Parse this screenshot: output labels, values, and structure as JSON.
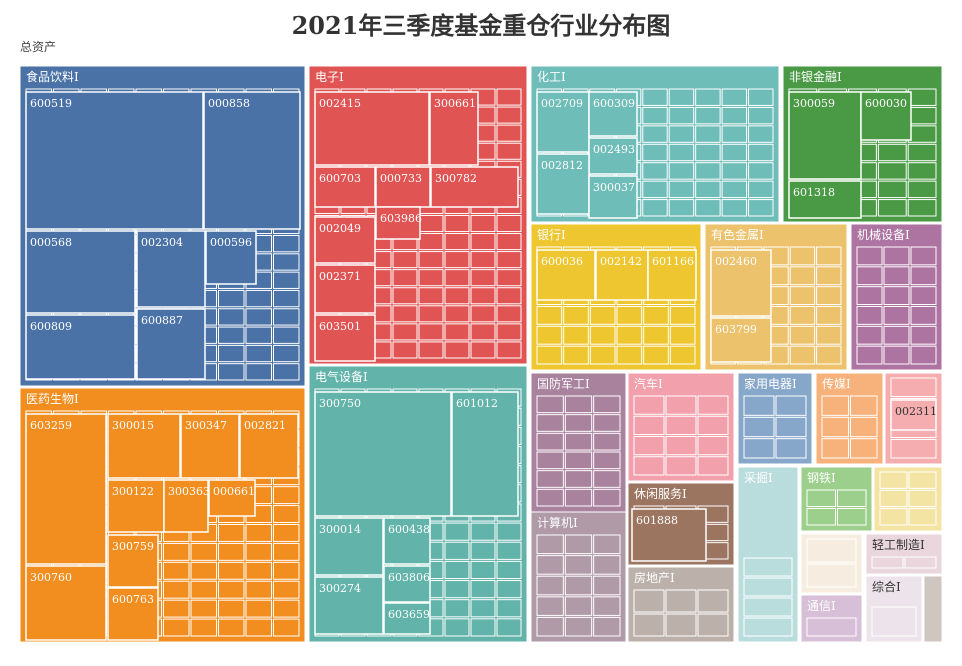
{
  "title": "2021年三季度基金重仓行业分布图",
  "breadcrumb": "总资产",
  "chart_data": {
    "type": "treemap",
    "title": "2021年三季度基金重仓行业分布图",
    "root": "总资产",
    "sectors": [
      {
        "name": "食品饮料I",
        "color": "#4a72a6",
        "stocks": [
          "600519",
          "000858",
          "000568",
          "002304",
          "000596",
          "600809",
          "600887"
        ]
      },
      {
        "name": "电子I",
        "color": "#e05454",
        "stocks": [
          "002415",
          "300661",
          "600703",
          "000733",
          "300782",
          "603986",
          "002049",
          "002371",
          "603501"
        ]
      },
      {
        "name": "化工I",
        "color": "#6fbdb9",
        "stocks": [
          "002709",
          "600309",
          "002493",
          "002812",
          "300037"
        ]
      },
      {
        "name": "非银金融I",
        "color": "#4a9a45",
        "stocks": [
          "300059",
          "600030",
          "601318"
        ]
      },
      {
        "name": "医药生物I",
        "color": "#f28d1f",
        "stocks": [
          "603259",
          "300015",
          "300347",
          "002821",
          "300122",
          "300363",
          "000661",
          "300759",
          "300760",
          "600763"
        ]
      },
      {
        "name": "电气设备I",
        "color": "#62b3a9",
        "stocks": [
          "300750",
          "601012",
          "300014",
          "600438",
          "300274",
          "603806",
          "603659"
        ]
      },
      {
        "name": "银行I",
        "color": "#edc630",
        "stocks": [
          "600036",
          "002142",
          "601166"
        ]
      },
      {
        "name": "有色金属I",
        "color": "#ecc26d",
        "stocks": [
          "002460",
          "603799"
        ]
      },
      {
        "name": "机械设备I",
        "color": "#ad73a1",
        "stocks": []
      },
      {
        "name": "国防军工I",
        "color": "#a9829e",
        "stocks": []
      },
      {
        "name": "汽车I",
        "color": "#f2a0ab",
        "stocks": []
      },
      {
        "name": "家用电器I",
        "color": "#86a7c9",
        "stocks": []
      },
      {
        "name": "传媒I",
        "color": "#f6b27a",
        "stocks": []
      },
      {
        "name": "",
        "color": "#f6adaf",
        "stocks": [
          "002311"
        ]
      },
      {
        "name": "计算机I",
        "color": "#b09aa8",
        "stocks": []
      },
      {
        "name": "休闲服务I",
        "color": "#9c7561",
        "stocks": [
          "601888"
        ]
      },
      {
        "name": "钢铁I",
        "color": "#9ccf8b",
        "stocks": []
      },
      {
        "name": "",
        "color": "#f4e4a3",
        "stocks": []
      },
      {
        "name": "房地产I",
        "color": "#bcb0aa",
        "stocks": []
      },
      {
        "name": "采掘I",
        "color": "#b9dcdc",
        "stocks": []
      },
      {
        "name": "",
        "color": "#f6ede0",
        "stocks": []
      },
      {
        "name": "轻工制造I",
        "color": "#ead7de",
        "stocks": []
      },
      {
        "name": "通信I",
        "color": "#d7bfd7",
        "stocks": []
      },
      {
        "name": "综合I",
        "color": "#ece4ea",
        "stocks": []
      },
      {
        "name": "",
        "color": "#cfc6c1",
        "stocks": []
      }
    ]
  }
}
